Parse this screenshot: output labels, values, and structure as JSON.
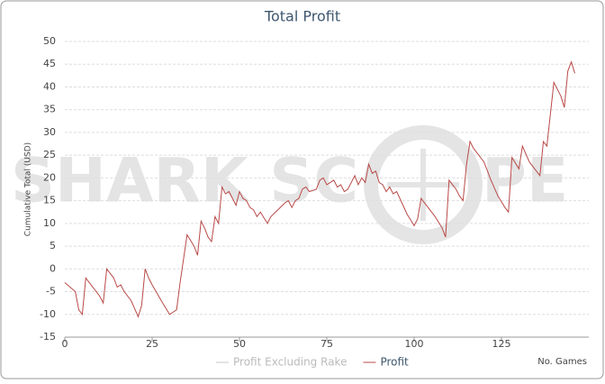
{
  "chart_data": {
    "type": "line",
    "title": "Total Profit",
    "y_label": "Cumulative Total (USD)",
    "x_label": "No. Games",
    "watermark": [
      "SHARK SC",
      "PE"
    ],
    "x": [
      0,
      3,
      4,
      5,
      6,
      7,
      10,
      11,
      12,
      14,
      15,
      16,
      17,
      19,
      21,
      22,
      23,
      24,
      25,
      28,
      30,
      31,
      32,
      33,
      35,
      37,
      38,
      39,
      40,
      41,
      42,
      43,
      44,
      45,
      46,
      47,
      48,
      49,
      50,
      51,
      52,
      53,
      54,
      55,
      56,
      58,
      59,
      61,
      63,
      64,
      65,
      66,
      67,
      68,
      69,
      70,
      72,
      73,
      74,
      75,
      76,
      77,
      78,
      79,
      80,
      81,
      82,
      83,
      84,
      85,
      86,
      87,
      88,
      89,
      90,
      91,
      92,
      93,
      94,
      95,
      98,
      100,
      101,
      102,
      103,
      106,
      108,
      109,
      110,
      111,
      112,
      113,
      114,
      115,
      116,
      117,
      120,
      122,
      124,
      126,
      127,
      128,
      130,
      131,
      133,
      135,
      136,
      137,
      138,
      140,
      142,
      143,
      144,
      145,
      146
    ],
    "series": [
      {
        "name": "Profit",
        "color": "#b94a48",
        "values": [
          -3,
          -5,
          -9,
          -10,
          -2,
          -3,
          -6,
          -7.5,
          0,
          -2,
          -4,
          -3.5,
          -5,
          -7,
          -10.5,
          -8,
          0,
          -2,
          -3.5,
          -7.5,
          -10,
          -9.5,
          -9,
          -3,
          7.5,
          5,
          3,
          10.5,
          9,
          7,
          6,
          11.5,
          10,
          18,
          16.5,
          17,
          15.5,
          14,
          17,
          15.5,
          15,
          13.5,
          13,
          11.5,
          12.5,
          10,
          11.5,
          13,
          14.5,
          15,
          13.5,
          15,
          15.5,
          17.5,
          18,
          17,
          17.5,
          19.5,
          20,
          18.5,
          19,
          19.5,
          18,
          18.5,
          17,
          17.5,
          19,
          20.5,
          18.5,
          20,
          19,
          23,
          21,
          21.5,
          19,
          18.5,
          17,
          18,
          16.5,
          17,
          12,
          9.5,
          11,
          15.5,
          14.5,
          11.5,
          9,
          7,
          19.5,
          18.5,
          17.5,
          16,
          15,
          23,
          28,
          26.5,
          23.5,
          19.5,
          16,
          13.5,
          12.5,
          24.5,
          22,
          27,
          23.5,
          21.5,
          20.5,
          28,
          27,
          41,
          38,
          35.5,
          43.5,
          45.5,
          43
        ]
      }
    ],
    "hidden_series": [
      {
        "name": "Profit Excluding Rake",
        "color": "#c8c8c8"
      }
    ],
    "xlim": [
      0,
      150
    ],
    "xticks": [
      0,
      25,
      50,
      75,
      100,
      125
    ],
    "ylim": [
      -15,
      50
    ],
    "yticks": [
      -15,
      -10,
      -5,
      0,
      5,
      10,
      15,
      20,
      25,
      30,
      35,
      40,
      45,
      50
    ],
    "grid": true
  }
}
